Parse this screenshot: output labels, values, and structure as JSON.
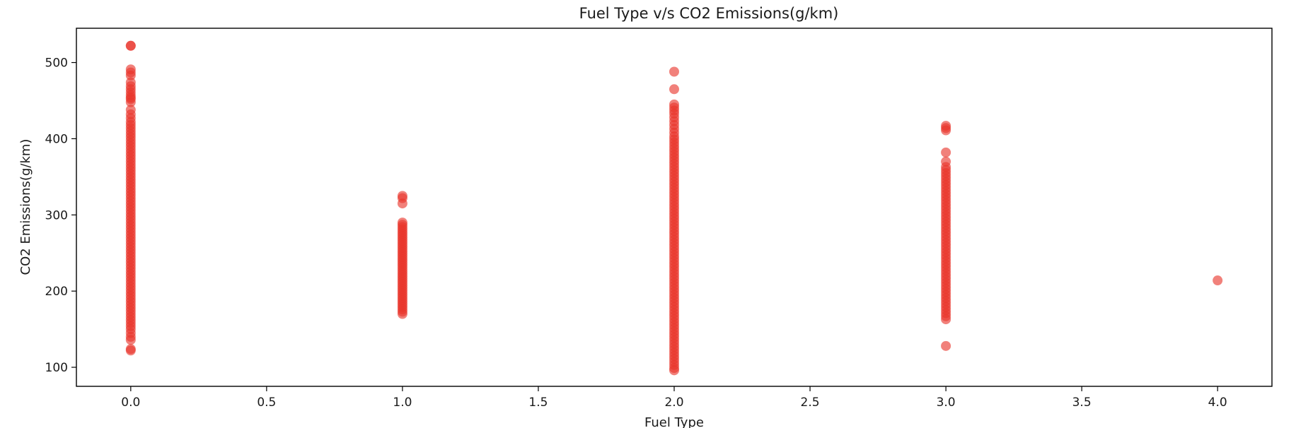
{
  "chart_data": {
    "type": "scatter",
    "title": "Fuel Type v/s CO2 Emissions(g/km)",
    "xlabel": "Fuel Type",
    "ylabel": "CO2 Emissions(g/km)",
    "xlim": [
      -0.2,
      4.2
    ],
    "ylim": [
      75,
      545
    ],
    "xticks": [
      0.0,
      0.5,
      1.0,
      1.5,
      2.0,
      2.5,
      3.0,
      3.5,
      4.0
    ],
    "xtick_labels": [
      "0.0",
      "0.5",
      "1.0",
      "1.5",
      "2.0",
      "2.5",
      "3.0",
      "3.5",
      "4.0"
    ],
    "yticks": [
      100,
      200,
      300,
      400,
      500
    ],
    "ytick_labels": [
      "100",
      "200",
      "300",
      "400",
      "500"
    ],
    "grid": false,
    "marker_color": "#e8342a",
    "series": [
      {
        "x": 0,
        "y": [
          522,
          522,
          491,
          487,
          483,
          474,
          469,
          465,
          461,
          457,
          454,
          452,
          448,
          438,
          432,
          427,
          422,
          418,
          414,
          410,
          406,
          402,
          398,
          394,
          390,
          386,
          382,
          378,
          374,
          370,
          366,
          362,
          358,
          354,
          350,
          346,
          342,
          338,
          334,
          330,
          326,
          322,
          318,
          314,
          310,
          306,
          302,
          298,
          294,
          290,
          286,
          282,
          278,
          274,
          270,
          266,
          262,
          258,
          254,
          250,
          246,
          242,
          238,
          234,
          230,
          226,
          222,
          218,
          214,
          210,
          206,
          202,
          198,
          194,
          190,
          186,
          182,
          178,
          174,
          170,
          166,
          162,
          158,
          154,
          150,
          145,
          140,
          136,
          124,
          122
        ]
      },
      {
        "x": 1,
        "y": [
          325,
          322,
          315,
          290,
          287,
          284,
          281,
          278,
          275,
          272,
          269,
          266,
          263,
          260,
          257,
          254,
          251,
          248,
          245,
          242,
          239,
          236,
          233,
          230,
          227,
          224,
          221,
          218,
          215,
          212,
          209,
          206,
          203,
          200,
          197,
          194,
          191,
          188,
          185,
          182,
          179,
          176,
          173,
          170
        ]
      },
      {
        "x": 2,
        "y": [
          488,
          465,
          445,
          441,
          437,
          433,
          428,
          423,
          418,
          413,
          408,
          403,
          399,
          395,
          391,
          387,
          383,
          379,
          375,
          371,
          367,
          363,
          359,
          355,
          351,
          347,
          343,
          339,
          335,
          331,
          327,
          323,
          319,
          315,
          311,
          307,
          303,
          299,
          295,
          291,
          287,
          283,
          279,
          275,
          271,
          267,
          263,
          259,
          255,
          251,
          247,
          243,
          239,
          235,
          231,
          227,
          223,
          219,
          215,
          211,
          207,
          203,
          199,
          195,
          191,
          187,
          183,
          179,
          175,
          171,
          167,
          163,
          159,
          155,
          151,
          147,
          143,
          139,
          135,
          131,
          127,
          123,
          119,
          115,
          111,
          107,
          103,
          99,
          96
        ]
      },
      {
        "x": 3,
        "y": [
          417,
          414,
          411,
          382,
          370,
          363,
          359,
          355,
          351,
          347,
          343,
          339,
          335,
          331,
          327,
          323,
          319,
          315,
          311,
          307,
          303,
          299,
          295,
          291,
          287,
          283,
          279,
          275,
          271,
          267,
          263,
          259,
          255,
          251,
          247,
          243,
          239,
          235,
          231,
          227,
          223,
          219,
          215,
          211,
          207,
          203,
          199,
          195,
          191,
          187,
          183,
          179,
          175,
          171,
          167,
          163,
          128
        ]
      },
      {
        "x": 4,
        "y": [
          214
        ]
      }
    ]
  }
}
